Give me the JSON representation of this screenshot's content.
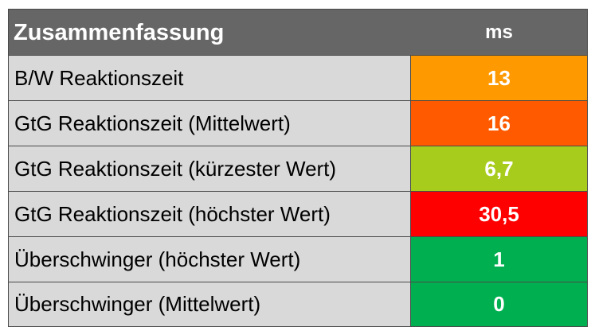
{
  "table": {
    "header": {
      "title": "Zusammenfassung",
      "unit": "ms"
    },
    "rows": [
      {
        "label": "B/W Reaktionszeit",
        "value": "13",
        "color": "#ff9900"
      },
      {
        "label": "GtG Reaktionszeit (Mittelwert)",
        "value": "16",
        "color": "#ff5a00"
      },
      {
        "label": "GtG Reaktionszeit (kürzester Wert)",
        "value": "6,7",
        "color": "#a8cc1c"
      },
      {
        "label": "GtG Reaktionszeit (höchster Wert)",
        "value": "30,5",
        "color": "#ff0000"
      },
      {
        "label": "Überschwinger (höchster Wert)",
        "value": "1",
        "color": "#00b050"
      },
      {
        "label": "Überschwinger (Mittelwert)",
        "value": "0",
        "color": "#00b050"
      }
    ]
  }
}
